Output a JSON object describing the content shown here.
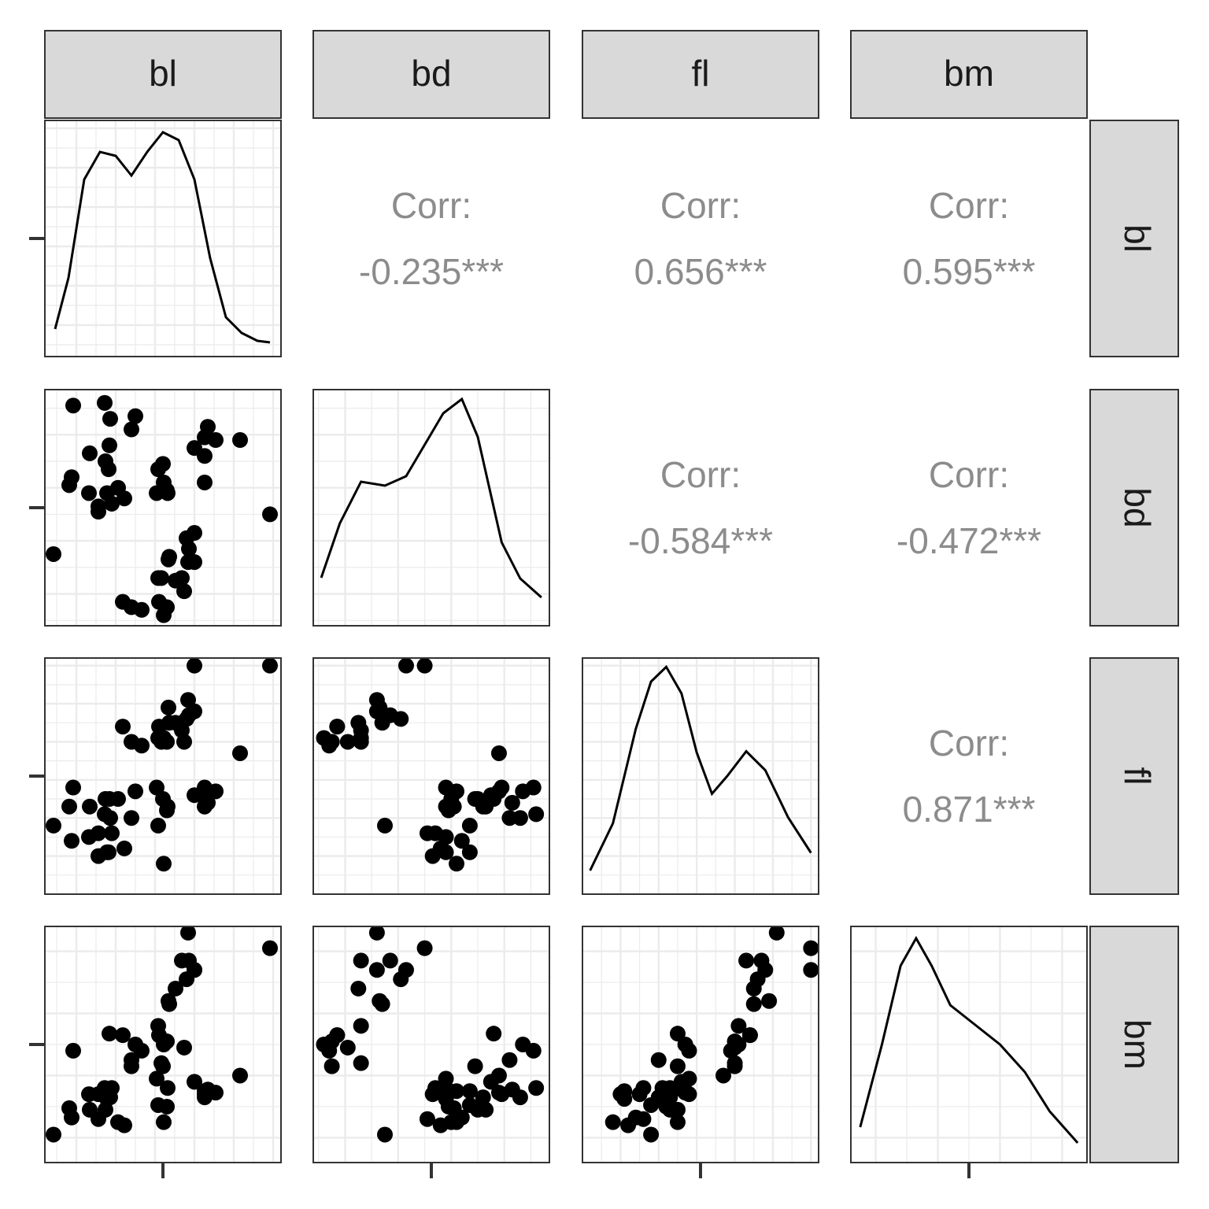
{
  "chart_data": {
    "type": "pairs",
    "point_color": "#000000",
    "line_color": "#000000",
    "grid": true,
    "corr_label": "Corr:",
    "correlations": {
      "values": [
        -0.235,
        0.656,
        0.595,
        -0.584,
        -0.472,
        0.871
      ],
      "value_labels": [
        "-0.235***",
        "0.656***",
        "0.595***",
        "-0.584***",
        "-0.472***",
        "0.871***"
      ]
    },
    "variables": [
      {
        "name": "bl",
        "lim": [
          31,
          61
        ],
        "ticks": [
          35,
          40,
          45,
          50,
          55,
          60
        ],
        "minor_ticks": [
          32.5,
          37.5,
          42.5,
          47.5,
          52.5,
          57.5
        ],
        "axis_tick": 46,
        "values": [
          39.1,
          39.5,
          40.3,
          36.7,
          39.3,
          38.9,
          39.2,
          34.1,
          42.0,
          37.8,
          37.8,
          41.1,
          38.6,
          34.6,
          36.6,
          38.7,
          42.5,
          34.4,
          46.5,
          50.0,
          51.3,
          45.4,
          52.7,
          45.2,
          46.1,
          51.3,
          46.0,
          51.3,
          46.6,
          51.7,
          46.1,
          50.0,
          48.7,
          50.0,
          47.6,
          46.5,
          45.4,
          46.7,
          43.3,
          46.8,
          40.9,
          49.0,
          45.5,
          48.4,
          45.8,
          49.3,
          42.0,
          49.2,
          59.6,
          55.8,
          32.1
        ],
        "density": {
          "ylim": [
            0,
            0.06
          ],
          "x": [
            32.3,
            34,
            36,
            38,
            40,
            42,
            44,
            46,
            48,
            50,
            52,
            54,
            56,
            58,
            59.6
          ],
          "y": [
            0.007,
            0.02,
            0.045,
            0.052,
            0.051,
            0.046,
            0.052,
            0.057,
            0.055,
            0.045,
            0.025,
            0.01,
            0.006,
            0.004,
            0.0036
          ]
        }
      },
      {
        "name": "bd",
        "lim": [
          12.8,
          21.7
        ],
        "ticks": [
          14,
          16,
          18,
          20
        ],
        "minor_ticks": [
          13,
          15,
          17,
          19,
          21
        ],
        "axis_tick": 17.25,
        "values": [
          18.7,
          17.4,
          18.0,
          19.3,
          20.6,
          17.8,
          19.6,
          18.1,
          20.2,
          17.1,
          17.3,
          17.6,
          21.2,
          21.1,
          17.8,
          19.0,
          20.7,
          18.4,
          17.9,
          19.5,
          19.2,
          18.7,
          19.8,
          17.8,
          18.2,
          18.2,
          18.9,
          19.9,
          17.8,
          20.3,
          13.2,
          16.3,
          14.1,
          15.2,
          14.5,
          13.5,
          14.6,
          15.3,
          13.4,
          15.4,
          13.7,
          16.1,
          13.7,
          14.6,
          14.6,
          15.7,
          13.5,
          15.2,
          17.0,
          19.8,
          15.5
        ],
        "density": {
          "ylim": [
            0,
            0.3
          ],
          "x": [
            13.1,
            13.8,
            14.6,
            15.5,
            16.3,
            17.0,
            17.7,
            18.4,
            19.0,
            19.9,
            20.6,
            21.4
          ],
          "y": [
            0.061,
            0.13,
            0.183,
            0.178,
            0.19,
            0.23,
            0.27,
            0.288,
            0.24,
            0.106,
            0.06,
            0.036
          ]
        }
      },
      {
        "name": "fl",
        "lim": [
          170,
          232
        ],
        "ticks": [
          180,
          190,
          200,
          210,
          220,
          230
        ],
        "minor_ticks": [
          175,
          185,
          195,
          205,
          215,
          225
        ],
        "axis_tick": 201,
        "values": [
          181,
          186,
          195,
          193,
          190,
          181,
          195,
          193,
          190,
          186,
          180,
          182,
          191,
          198,
          185,
          195,
          197,
          184,
          192,
          196,
          193,
          188,
          197,
          198,
          178,
          197,
          195,
          198,
          193,
          194,
          211,
          230,
          210,
          218,
          215,
          210,
          211,
          219,
          209,
          215,
          214,
          216,
          214,
          213,
          210,
          217,
          210,
          221,
          230,
          207,
          188
        ],
        "density": {
          "ylim": [
            0,
            0.04
          ],
          "x": [
            172,
            178,
            184,
            188,
            192,
            196,
            200,
            204,
            208,
            213,
            218,
            224,
            230
          ],
          "y": [
            0.004,
            0.012,
            0.028,
            0.036,
            0.0385,
            0.034,
            0.024,
            0.017,
            0.02,
            0.0242,
            0.021,
            0.013,
            0.007
          ]
        }
      },
      {
        "name": "bm",
        "lim": [
          2600,
          6400
        ],
        "ticks": [
          3000,
          4000,
          5000,
          6000
        ],
        "minor_ticks": [
          3500,
          4500,
          5500
        ],
        "axis_tick": 4500,
        "values": [
          3750,
          3800,
          3250,
          3450,
          3650,
          3625,
          4675,
          3475,
          4250,
          3300,
          3700,
          3200,
          3800,
          4400,
          3700,
          3450,
          4500,
          3325,
          3500,
          3900,
          3650,
          3525,
          3725,
          3950,
          3250,
          3750,
          4150,
          3700,
          3800,
          3775,
          4500,
          5700,
          4450,
          5700,
          5400,
          4550,
          4800,
          5200,
          4400,
          5150,
          4650,
          5550,
          4650,
          5850,
          4200,
          5850,
          4150,
          6300,
          6050,
          4000,
          3050
        ],
        "density": {
          "ylim": [
            0,
            0.0006
          ],
          "x": [
            2750,
            3100,
            3400,
            3650,
            3900,
            4200,
            4600,
            5000,
            5400,
            5800,
            6250
          ],
          "y": [
            9e-05,
            0.0003,
            0.0005,
            0.00057,
            0.0005,
            0.0004,
            0.00035,
            0.0003,
            0.00023,
            0.00013,
            5e-05
          ]
        }
      }
    ]
  }
}
